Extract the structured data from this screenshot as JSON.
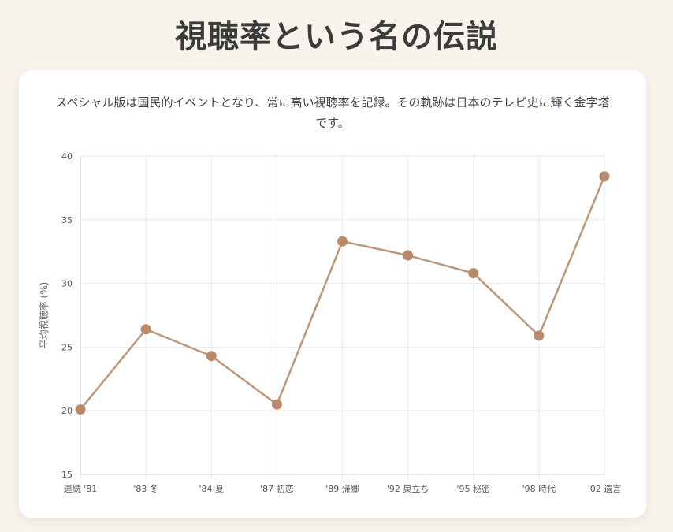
{
  "page": {
    "title": "視聴率という名の伝説",
    "description": "スペシャル版は国民的イベントとなり、常に高い視聴率を記録。その軌跡は日本のテレビ史に輝く金字塔です。"
  },
  "colors": {
    "background": "#f8f4ec",
    "card": "#ffffff",
    "line": "#bf9678",
    "point": "#b98969",
    "grid": "#e8e8e8",
    "title": "#3b3b3b"
  },
  "chart_data": {
    "type": "line",
    "title": "",
    "xlabel": "",
    "ylabel": "平均視聴率 (%)",
    "categories": [
      "連続 '81",
      "'83 冬",
      "'84 夏",
      "'87 初恋",
      "'89 帰郷",
      "'92 巣立ち",
      "'95 秘密",
      "'98 時代",
      "'02 遺言"
    ],
    "series": [
      {
        "values": [
          20.1,
          26.4,
          24.3,
          20.5,
          33.3,
          32.2,
          30.8,
          25.9,
          38.4
        ]
      }
    ],
    "ylim": [
      15,
      40
    ],
    "yticks": [
      15,
      20,
      25,
      30,
      35,
      40
    ],
    "grid": true,
    "legend": "none"
  }
}
